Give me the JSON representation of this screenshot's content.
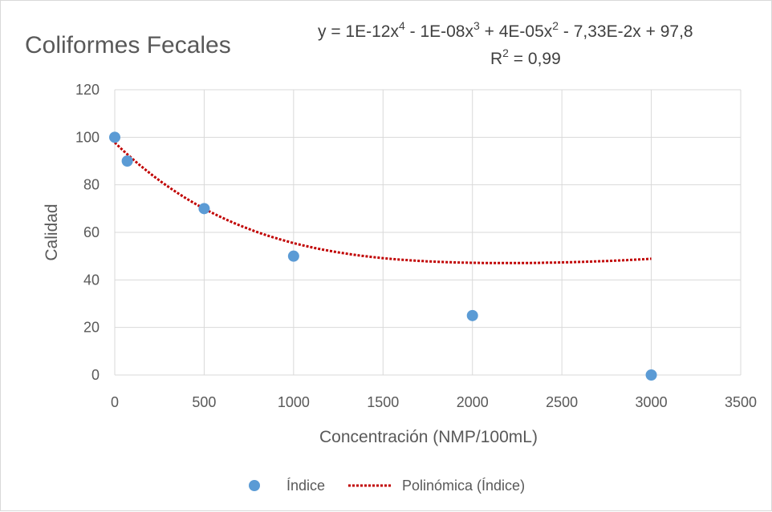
{
  "chart_data": {
    "type": "scatter",
    "title": "Coliformes Fecales",
    "xlabel": "Concentración (NMP/100mL)",
    "ylabel": "Calidad",
    "xlim": [
      0,
      3500
    ],
    "ylim": [
      0,
      120
    ],
    "xticks": [
      0,
      500,
      1000,
      1500,
      2000,
      2500,
      3000,
      3500
    ],
    "yticks": [
      0,
      20,
      40,
      60,
      80,
      100,
      120
    ],
    "grid": true,
    "legend_position": "bottom",
    "series": [
      {
        "name": "Índice",
        "color": "#5b9bd5",
        "marker": "circle",
        "points": [
          [
            0,
            100
          ],
          [
            70,
            90
          ],
          [
            500,
            70
          ],
          [
            1000,
            50
          ],
          [
            2000,
            25
          ],
          [
            3000,
            0
          ]
        ]
      }
    ],
    "trendline": {
      "name": "Polinómica (Índice)",
      "type": "polynomial",
      "order": 4,
      "color": "#c00000",
      "style": "dotted",
      "coefficients": [
        1e-12,
        -1e-08,
        4e-05,
        -0.0733,
        97.8
      ],
      "equation": {
        "prefix": "y = 1E-12x",
        "sup1": "4",
        "mid1": " - 1E-08x",
        "sup2": "3",
        "mid2": " + 4E-05x",
        "sup3": "2",
        "suffix": " - 7,33E-2x + 97,8"
      },
      "r2": {
        "prefix": "R",
        "sup": "2",
        "suffix": " = 0,99"
      }
    }
  }
}
